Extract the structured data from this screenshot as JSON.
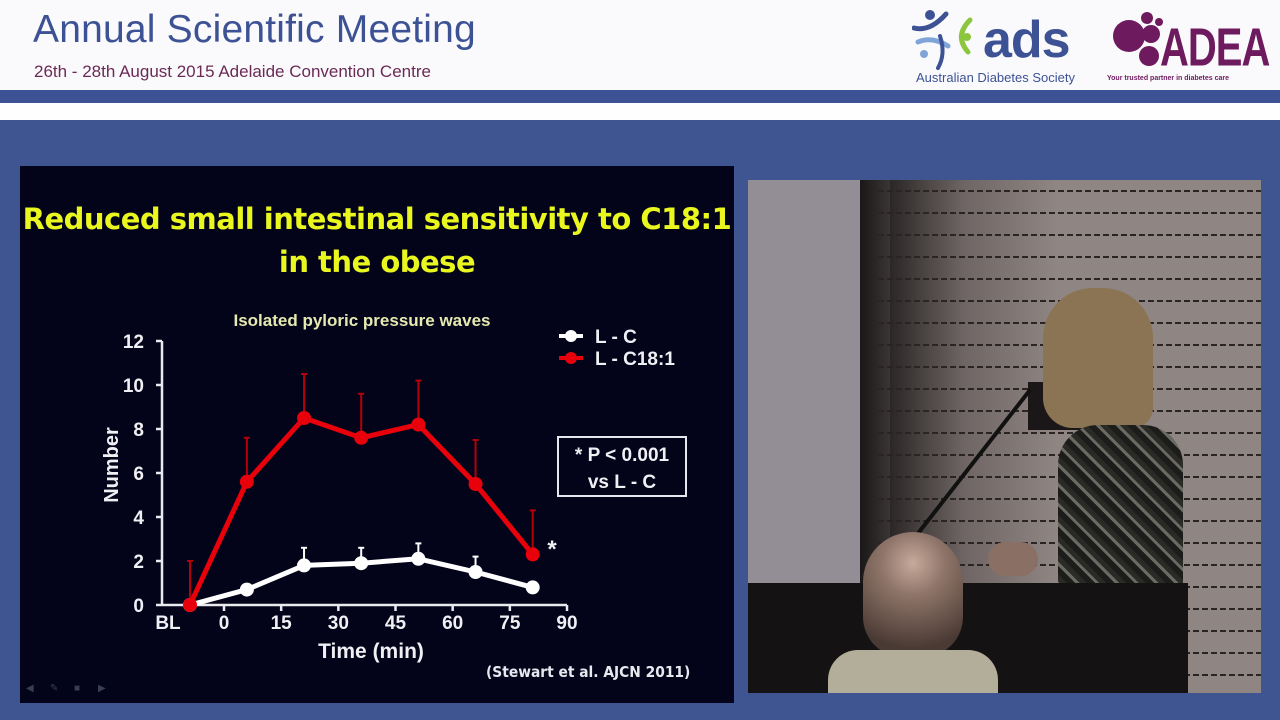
{
  "header": {
    "title": "Annual Scientific Meeting",
    "subtitle": "26th - 28th August 2015 Adelaide Convention Centre",
    "logos": [
      {
        "name": "ads",
        "text": "ads",
        "caption": "Australian Diabetes Society"
      },
      {
        "name": "ADEA",
        "text": "ADEA",
        "caption": "Your trusted partner in diabetes care"
      }
    ],
    "brand_color": "#3d5294",
    "adea_color": "#6e1a5e"
  },
  "slide": {
    "title_line1": "Reduced small intestinal sensitivity to C18:1",
    "title_line2": "in the obese",
    "title_color": "#e9f71f",
    "background": "#03041a",
    "citation": "(Stewart et al. AJCN 2011)",
    "stat_box": {
      "line1": "* P < 0.001",
      "line2": "vs L - C"
    },
    "significance_marker": "*",
    "controls": [
      "prev-arrow-icon",
      "pen-icon",
      "slide-menu-icon",
      "next-arrow-icon"
    ]
  },
  "chart_data": {
    "type": "line",
    "title": "Isolated pyloric pressure waves",
    "xlabel": "Time (min)",
    "ylabel": "Number",
    "x_tick_labels": [
      "BL",
      "0",
      "15",
      "30",
      "45",
      "60",
      "75",
      "90"
    ],
    "y_tick_labels": [
      "0",
      "2",
      "4",
      "6",
      "8",
      "10",
      "12"
    ],
    "ylim": [
      0,
      12
    ],
    "xlim": [
      -10,
      90
    ],
    "grid": false,
    "legend_position": "top-right",
    "x": [
      "BL",
      6,
      21,
      36,
      51,
      66,
      81
    ],
    "series": [
      {
        "name": "L - C",
        "color": "#ffffff",
        "values": [
          0,
          0.7,
          1.8,
          1.9,
          2.1,
          1.5,
          0.8
        ],
        "error": [
          0,
          0,
          0.8,
          0.7,
          0.7,
          0.7,
          0
        ]
      },
      {
        "name": "L - C18:1",
        "color": "#e8000b",
        "values": [
          0,
          5.6,
          8.5,
          7.6,
          8.2,
          5.5,
          2.3
        ],
        "error": [
          2.0,
          2.0,
          2.0,
          2.0,
          2.0,
          2.0,
          2.0
        ]
      }
    ],
    "annotations": [
      "* P < 0.001 vs L - C",
      "* at 81 min (L - C18:1)"
    ]
  }
}
